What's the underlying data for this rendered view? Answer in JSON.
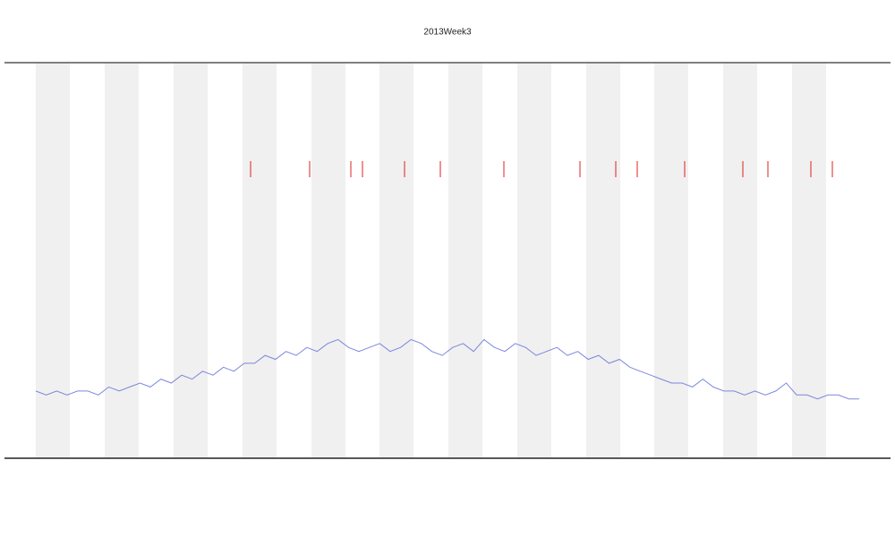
{
  "chart_data": {
    "type": "line",
    "title": "2013Week3",
    "values": [
      17,
      16,
      17,
      16,
      17,
      17,
      16,
      18,
      17,
      18,
      19,
      18,
      20,
      19,
      21,
      20,
      22,
      21,
      23,
      22,
      24,
      24,
      26,
      25,
      27,
      26,
      28,
      27,
      29,
      30,
      28,
      27,
      28,
      29,
      27,
      28,
      30,
      29,
      27,
      26,
      28,
      29,
      27,
      30,
      28,
      27,
      29,
      28,
      26,
      27,
      28,
      26,
      27,
      25,
      26,
      24,
      25,
      23,
      22,
      21,
      20,
      19,
      19,
      18,
      20,
      18,
      17,
      17,
      16,
      17,
      16,
      17,
      19,
      16,
      16,
      15,
      16,
      16,
      15,
      15
    ],
    "color": "#5c6bd6",
    "ylim": [
      0,
      100
    ]
  }
}
